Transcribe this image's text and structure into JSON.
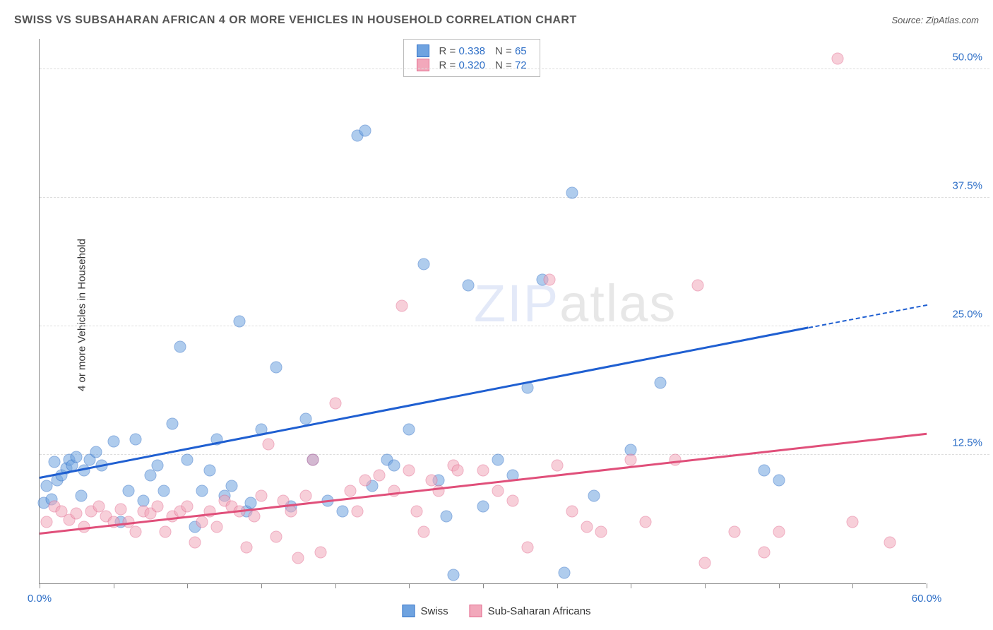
{
  "title": "SWISS VS SUBSAHARAN AFRICAN 4 OR MORE VEHICLES IN HOUSEHOLD CORRELATION CHART",
  "source": "Source: ZipAtlas.com",
  "y_axis_label": "4 or more Vehicles in Household",
  "watermark_zip": "ZIP",
  "watermark_atlas": "atlas",
  "chart": {
    "type": "scatter",
    "xlim": [
      0,
      60
    ],
    "ylim": [
      0,
      53
    ],
    "x_ticks": [
      0,
      5,
      10,
      15,
      20,
      25,
      30,
      35,
      40,
      45,
      50,
      55,
      60
    ],
    "x_tick_labels": {
      "0": "0.0%",
      "60": "60.0%"
    },
    "y_gridlines": [
      12.5,
      25.0,
      37.5,
      50.0
    ],
    "y_tick_labels": [
      "12.5%",
      "25.0%",
      "37.5%",
      "50.0%"
    ],
    "background_color": "#ffffff",
    "grid_color": "#dddddd",
    "axis_color": "#888888",
    "marker_radius": 8.5,
    "marker_opacity": 0.55,
    "series": [
      {
        "name": "Swiss",
        "label": "Swiss",
        "fill_color": "#6fa3e0",
        "stroke_color": "#2e6fc7",
        "trend_color": "#1f5fd1",
        "r_value": "0.338",
        "n_value": "65",
        "trend_start": [
          0,
          10.2
        ],
        "trend_end": [
          52,
          24.8
        ],
        "trend_dashed_end": [
          60,
          27.0
        ],
        "points": [
          [
            0.3,
            7.8
          ],
          [
            0.5,
            9.5
          ],
          [
            0.8,
            8.2
          ],
          [
            1.0,
            11.8
          ],
          [
            1.2,
            10.0
          ],
          [
            1.5,
            10.5
          ],
          [
            1.8,
            11.2
          ],
          [
            2.0,
            12.0
          ],
          [
            2.2,
            11.5
          ],
          [
            2.5,
            12.3
          ],
          [
            2.8,
            8.5
          ],
          [
            3.0,
            11.0
          ],
          [
            3.4,
            12.0
          ],
          [
            3.8,
            12.8
          ],
          [
            4.2,
            11.5
          ],
          [
            5.0,
            13.8
          ],
          [
            5.5,
            6.0
          ],
          [
            6.0,
            9.0
          ],
          [
            6.5,
            14.0
          ],
          [
            7.0,
            8.0
          ],
          [
            7.5,
            10.5
          ],
          [
            8.0,
            11.5
          ],
          [
            8.4,
            9.0
          ],
          [
            9.0,
            15.5
          ],
          [
            9.5,
            23.0
          ],
          [
            10.0,
            12.0
          ],
          [
            10.5,
            5.5
          ],
          [
            11.0,
            9.0
          ],
          [
            11.5,
            11.0
          ],
          [
            12.0,
            14.0
          ],
          [
            12.5,
            8.5
          ],
          [
            13.0,
            9.5
          ],
          [
            13.5,
            25.5
          ],
          [
            14.0,
            7.0
          ],
          [
            14.3,
            7.8
          ],
          [
            15.0,
            15.0
          ],
          [
            16.0,
            21.0
          ],
          [
            17.0,
            7.5
          ],
          [
            18.0,
            16.0
          ],
          [
            18.5,
            12.0
          ],
          [
            19.5,
            8.0
          ],
          [
            20.5,
            7.0
          ],
          [
            21.5,
            43.5
          ],
          [
            22.0,
            44.0
          ],
          [
            22.5,
            9.5
          ],
          [
            23.5,
            12.0
          ],
          [
            24.0,
            11.5
          ],
          [
            25.0,
            15.0
          ],
          [
            26.0,
            31.0
          ],
          [
            27.0,
            10.0
          ],
          [
            27.5,
            6.5
          ],
          [
            28.0,
            0.8
          ],
          [
            29.0,
            29.0
          ],
          [
            30.0,
            7.5
          ],
          [
            31.0,
            12.0
          ],
          [
            32.0,
            10.5
          ],
          [
            33.0,
            19.0
          ],
          [
            34.0,
            29.5
          ],
          [
            35.5,
            1.0
          ],
          [
            36.0,
            38.0
          ],
          [
            37.5,
            8.5
          ],
          [
            40.0,
            13.0
          ],
          [
            42.0,
            19.5
          ],
          [
            49.0,
            11.0
          ],
          [
            50.0,
            10.0
          ]
        ]
      },
      {
        "name": "Sub-Saharan Africans",
        "label": "Sub-Saharan Africans",
        "fill_color": "#f2a8bb",
        "stroke_color": "#e36b8f",
        "trend_color": "#e04f7a",
        "r_value": "0.320",
        "n_value": "72",
        "trend_start": [
          0,
          4.8
        ],
        "trend_end": [
          60,
          14.5
        ],
        "points": [
          [
            0.5,
            6.0
          ],
          [
            1.0,
            7.5
          ],
          [
            1.5,
            7.0
          ],
          [
            2.0,
            6.2
          ],
          [
            2.5,
            6.8
          ],
          [
            3.0,
            5.5
          ],
          [
            3.5,
            7.0
          ],
          [
            4.0,
            7.5
          ],
          [
            4.5,
            6.5
          ],
          [
            5.0,
            6.0
          ],
          [
            5.5,
            7.2
          ],
          [
            6.0,
            6.0
          ],
          [
            6.5,
            5.0
          ],
          [
            7.0,
            7.0
          ],
          [
            7.5,
            6.8
          ],
          [
            8.0,
            7.5
          ],
          [
            8.5,
            5.0
          ],
          [
            9.0,
            6.5
          ],
          [
            9.5,
            7.0
          ],
          [
            10.0,
            7.5
          ],
          [
            10.5,
            4.0
          ],
          [
            11.0,
            6.0
          ],
          [
            11.5,
            7.0
          ],
          [
            12.0,
            5.5
          ],
          [
            12.5,
            8.0
          ],
          [
            13.0,
            7.5
          ],
          [
            13.5,
            7.0
          ],
          [
            14.0,
            3.5
          ],
          [
            14.5,
            6.5
          ],
          [
            15.0,
            8.5
          ],
          [
            15.5,
            13.5
          ],
          [
            16.0,
            4.5
          ],
          [
            16.5,
            8.0
          ],
          [
            17.0,
            7.0
          ],
          [
            17.5,
            2.5
          ],
          [
            18.0,
            8.5
          ],
          [
            18.5,
            12.0
          ],
          [
            19.0,
            3.0
          ],
          [
            20.0,
            17.5
          ],
          [
            21.0,
            9.0
          ],
          [
            21.5,
            7.0
          ],
          [
            22.0,
            10.0
          ],
          [
            23.0,
            10.5
          ],
          [
            24.0,
            9.0
          ],
          [
            24.5,
            27.0
          ],
          [
            25.0,
            11.0
          ],
          [
            25.5,
            7.0
          ],
          [
            26.0,
            5.0
          ],
          [
            26.5,
            10.0
          ],
          [
            27.0,
            9.0
          ],
          [
            28.0,
            11.5
          ],
          [
            28.3,
            11.0
          ],
          [
            30.0,
            11.0
          ],
          [
            31.0,
            9.0
          ],
          [
            32.0,
            8.0
          ],
          [
            33.0,
            3.5
          ],
          [
            34.5,
            29.5
          ],
          [
            35.0,
            11.5
          ],
          [
            36.0,
            7.0
          ],
          [
            37.0,
            5.5
          ],
          [
            38.0,
            5.0
          ],
          [
            40.0,
            12.0
          ],
          [
            41.0,
            6.0
          ],
          [
            43.0,
            12.0
          ],
          [
            44.5,
            29.0
          ],
          [
            45.0,
            2.0
          ],
          [
            47.0,
            5.0
          ],
          [
            49.0,
            3.0
          ],
          [
            50.0,
            5.0
          ],
          [
            54.0,
            51.0
          ],
          [
            55.0,
            6.0
          ],
          [
            57.5,
            4.0
          ]
        ]
      }
    ],
    "stats_label_color": "#555555",
    "stats_value_color": "#2e6fc7",
    "x_label_color": "#2e6fc7",
    "y_label_colors": "#2e6fc7"
  }
}
